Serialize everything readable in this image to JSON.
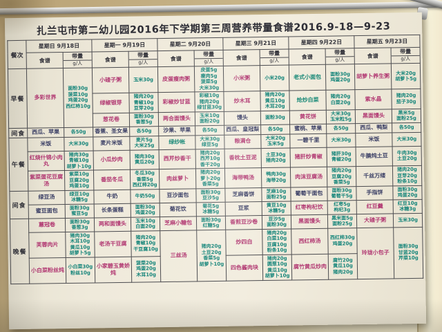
{
  "title": "扎兰屯市第二幼儿园2016年下学期第三周营养带量食谱2016.9-18—9-23",
  "colors": {
    "dish_pink": "#b23a73",
    "dish_dark": "#3c4066",
    "dish_teal": "#1b8a78",
    "qty_teal": "#16857a",
    "paper": "#efeadb",
    "grid_line": "#4c4c50"
  },
  "table": {
    "corner_header": "餐次",
    "menu_header": "食谱",
    "qty_header": "带量",
    "qty_unit": "g/人",
    "days": [
      "星期日 9月18日",
      "星期一 9月19日",
      "星期二 9月20日",
      "星期三 9月21日",
      "星期四 9月22日",
      "星期五 9月23日"
    ],
    "meals": [
      {
        "label": "早餐",
        "rows": [
          [
            {
              "n": "多彩世界",
              "rs": 3,
              "q": [
                "面粉30g",
                "菠菜10g",
                "鸡蛋20g",
                "西红柿10g"
              ]
            },
            {
              "n": "小碴子粥",
              "q": [
                "玉米30g"
              ]
            },
            {
              "n": "皮蛋瘦肉粥",
              "q": [
                "皮蛋5g",
                "瘦肉5g",
                "菠菜5g",
                "大米30g"
              ]
            },
            {
              "n": "小米粥",
              "q": [
                "小米20g"
              ]
            },
            {
              "n": "老式小面包",
              "c": "t",
              "q": [
                "面粉30g",
                "鸡蛋20g"
              ]
            },
            {
              "n": "胡萝卜养生粥",
              "q": [
                "大米20g",
                "胡萝卜5g"
              ]
            }
          ],
          [
            null,
            {
              "n": "绿椒银芽",
              "q": [
                "猪肉20g",
                "青椒10g",
                "豆芽20g"
              ]
            },
            {
              "n": "彩椒炒甘蓝",
              "q": [
                "彩椒10g",
                "猪肉20g",
                "绿甘蓝30g"
              ]
            },
            {
              "n": "炒木耳",
              "q": [
                "猪肉20g",
                "黄瓜10g",
                "木耳20g"
              ]
            },
            {
              "n": "炝炒白菜",
              "c": "t",
              "q": [
                "猪肉20g",
                "白菜20g"
              ]
            },
            {
              "n": "紫水晶",
              "q": [
                "猪肉20g",
                "茄子30g"
              ]
            }
          ],
          [
            null,
            {
              "n": "葱花卷",
              "q": [
                "面粉30g",
                "香葱5g"
              ]
            },
            {
              "n": "两合面馒头",
              "q": [
                "玉米10g",
                "面粉20g"
              ]
            },
            {
              "n": "馒头",
              "c": "d",
              "q": [
                "面粉30g"
              ]
            },
            {
              "n": "黄花饼",
              "q": [
                "大米30g",
                "玉米粒5g"
              ]
            },
            {
              "n": "黑面馒头",
              "q": [
                "黑米5g",
                "面粉25g"
              ]
            }
          ]
        ]
      },
      {
        "label": "间食",
        "rows": [
          [
            {
              "n": "西瓜、苹果",
              "c": "d",
              "q": [
                "各50g"
              ]
            },
            {
              "n": "香蕉、圣女果",
              "c": "d",
              "q": [
                "各50g"
              ]
            },
            {
              "n": "沙果、苹果",
              "c": "d",
              "q": [
                "各50g"
              ]
            },
            {
              "n": "西瓜、皇冠梨",
              "c": "d",
              "q": [
                "各50g"
              ]
            },
            {
              "n": "蜜桃、苹果",
              "c": "d",
              "q": [
                "各50g"
              ]
            },
            {
              "n": "西瓜、鸭梨",
              "c": "d",
              "q": [
                "各50g"
              ]
            }
          ]
        ]
      },
      {
        "label": "午餐",
        "rows": [
          [
            {
              "n": "米饭",
              "c": "d",
              "q": [
                "大米30g"
              ]
            },
            {
              "n": "麦片米饭",
              "c": "d",
              "q": [
                "麦片5g",
                "大米25g"
              ]
            },
            {
              "n": "绿纱帐",
              "c": "t",
              "q": [
                "大米30g",
                "绿豆5g"
              ]
            },
            {
              "n": "粮满仓",
              "q": [
                "大米20g",
                "玉米5g"
              ]
            },
            {
              "n": "一碧千里",
              "c": "d",
              "q": [
                "大米30g"
              ]
            },
            {
              "n": "米饭",
              "c": "d",
              "q": [
                "大米30g"
              ]
            }
          ],
          [
            {
              "n": "红烧什锦小肉丸",
              "q": [
                "猪肉30g",
                "青椒10g",
                "胡萝卜10g"
              ]
            },
            {
              "n": "小瓜炒肉",
              "q": [
                "猪肉30g",
                "黄瓜20g"
              ]
            },
            {
              "n": "西芹炒香干",
              "q": [
                "猪肉20g",
                "西芹10g",
                "香干20g"
              ]
            },
            {
              "n": "香枕土豆泥",
              "q": [
                "土豆30g",
                "猪肉20g"
              ]
            },
            {
              "n": "猪肝炒青椒",
              "q": [
                "猪肝30g",
                "青椒20g"
              ]
            },
            {
              "n": "牛腩炖土豆",
              "c": "d",
              "q": [
                "牛肉30g",
                "土豆20g"
              ]
            }
          ],
          [
            {
              "n": "紫菜蛋花豆腐汤",
              "q": [
                "紫菜10g",
                "豆腐20g",
                "鸡蛋10g"
              ]
            },
            {
              "n": "番茄冬瓜",
              "q": [
                "冬瓜30g",
                "香菜5g",
                "西红柿20g"
              ]
            },
            {
              "n": "肉丝萝卜",
              "q": [
                "猪肉20g",
                "萝卜20g",
                "香菜5g"
              ]
            },
            {
              "n": "海带鸭汤",
              "q": [
                "鸭肉30g",
                "海带20g"
              ]
            },
            {
              "n": "肉沫豆腐汤",
              "q": [
                "猪肉20g",
                "豆腐20g",
                "香菜5g"
              ]
            },
            {
              "n": "千丝万缕",
              "c": "d",
              "q": [
                "猪肉20g",
                "豆芽20g",
                "粉条10g"
              ]
            }
          ]
        ]
      },
      {
        "label": "间食",
        "rows": [
          [
            {
              "n": "绿豆汤",
              "c": "d",
              "q": [
                "绿豆10g",
                "冰糖5g"
              ]
            },
            {
              "n": "牛奶",
              "c": "d",
              "q": [
                "牛奶50g"
              ]
            },
            {
              "n": "豆沙面包",
              "c": "d",
              "q": [
                "面粉30g",
                "豆沙5g"
              ]
            },
            {
              "n": "芝麻香饼",
              "c": "d",
              "q": [
                "芝麻10g",
                "面粉25g"
              ]
            },
            {
              "n": "葡萄干面包",
              "c": "d",
              "q": [
                "面粉30g",
                "葡萄干5g"
              ]
            },
            {
              "n": "手指饼",
              "c": "d",
              "q": [
                "面粉30g",
                "鸡蛋20g"
              ]
            }
          ],
          [
            {
              "n": "蜜豆面包",
              "c": "d",
              "q": [
                "面粉30g",
                "蜜豆5g"
              ]
            },
            {
              "n": "长条蛋糕",
              "c": "d",
              "q": [
                "面粉30g",
                "鸡蛋20g"
              ]
            },
            {
              "n": "菊花饮",
              "c": "d",
              "q": [
                "菊花5g",
                "冰糖5g"
              ]
            },
            {
              "n": "豆浆",
              "c": "d",
              "q": [
                "黄豆10g",
                "冰糖5g"
              ]
            },
            {
              "n": "红枣枸杞饮",
              "q": [
                "红枣5g",
                "枸杞3g"
              ]
            },
            {
              "n": "红豆羹",
              "q": [
                "红豆10g",
                "冰糖3g"
              ]
            }
          ]
        ]
      },
      {
        "label": "晚餐",
        "rows": [
          [
            {
              "n": "蕙冠卷",
              "q": [
                "面粉30g",
                "香葱3g"
              ]
            },
            {
              "n": "两和面馒头",
              "q": [
                "玉米10g",
                "白面20g"
              ]
            },
            {
              "n": "芝麻小糖包",
              "q": [
                "面粉30g",
                "红糖5g"
              ]
            },
            {
              "n": "香煎豆沙卷",
              "q": [
                "豆沙5g",
                "面粉30g"
              ]
            },
            {
              "n": "黑面馒头",
              "q": [
                "黑米面5g",
                "面粉25g"
              ]
            },
            {
              "n": "大碴子粥",
              "q": [
                "玉米30g"
              ]
            }
          ],
          [
            {
              "n": "芙蓉肉片",
              "q": [
                "猪肉30g",
                "木耳10g",
                "黄瓜10g",
                "胡萝卜5g"
              ]
            },
            {
              "n": "老汤干豆腐",
              "q": [
                "猪肉20g",
                "青椒10g",
                "干豆腐10g"
              ]
            },
            {
              "n": "三丝汤",
              "rs": 2,
              "q": [
                "猪肉20g",
                "土豆20g",
                "香菜5g",
                "胡萝卜10g"
              ]
            },
            {
              "n": "炒四白",
              "q": [
                "猪肉20g",
                "白菜10g",
                "豆腐10g",
                "粉条10g"
              ]
            },
            {
              "n": "西红柿汤",
              "q": [
                "西红柿30g",
                "鸡蛋20g"
              ]
            },
            {
              "n": "玲珑小包子",
              "rs": 2,
              "q": [
                "面粉30g",
                "甘蓝20g",
                "芹菜10g"
              ]
            }
          ],
          [
            {
              "n": "小白菜粉丝炖",
              "q": [
                "小白菜30g",
                "粉丝10g"
              ]
            },
            {
              "n": "小家碧玉黄娇炖",
              "q": [
                "菠菜20g",
                "鸡蛋20g",
                "木耳10g"
              ]
            },
            null,
            {
              "n": "四色酱肉块",
              "q": [
                "猪肉20g",
                "圆葱10g",
                "黄瓜10g",
                "胡萝卜10g"
              ]
            },
            {
              "n": "腐竹黄瓜炒肉",
              "q": [
                "腐竹20g",
                "黄瓜10g",
                "猪肉20g"
              ]
            },
            null
          ]
        ]
      }
    ]
  }
}
